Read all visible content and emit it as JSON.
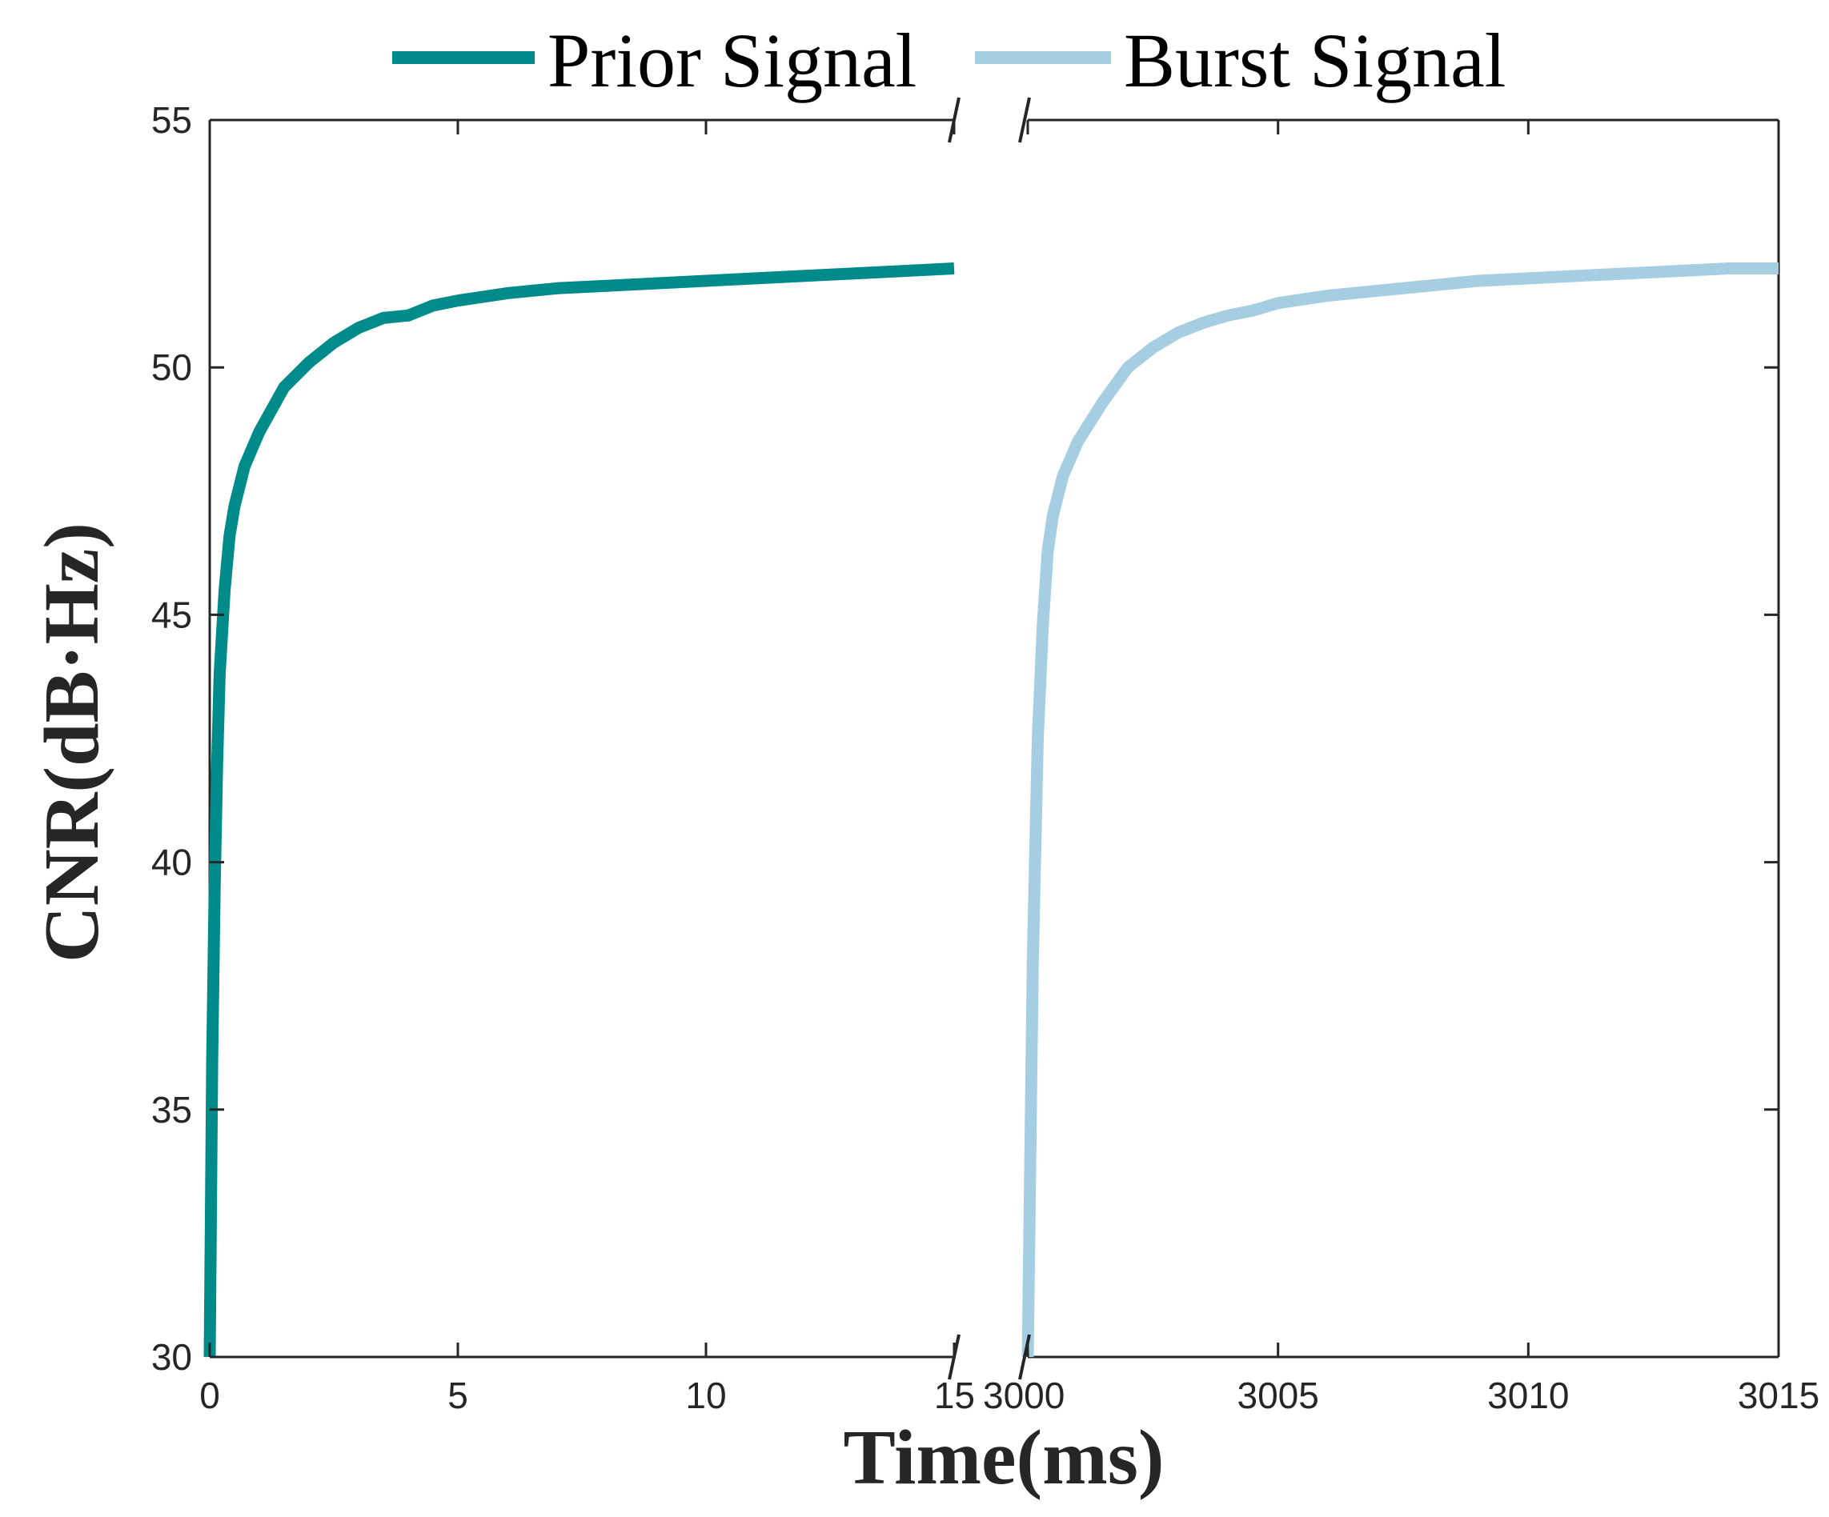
{
  "chart_data": {
    "type": "line",
    "title": "",
    "xlabel": "Time(ms)",
    "ylabel": "CNR(dB·Hz)",
    "ylim": [
      30,
      55
    ],
    "y_ticks": [
      30,
      35,
      40,
      45,
      50,
      55
    ],
    "x_axis_break": true,
    "grid": false,
    "legend": {
      "placement": "top-outside",
      "orientation": "horizontal"
    },
    "segments": [
      {
        "xlim": [
          0,
          15
        ],
        "x_ticks": [
          0,
          5,
          10,
          15
        ]
      },
      {
        "xlim": [
          3000,
          3015
        ],
        "x_ticks": [
          3000,
          3005,
          3010,
          3015
        ]
      }
    ],
    "series": [
      {
        "name": "Prior Signal",
        "color": "#008b8b",
        "x": [
          0,
          0.05,
          0.1,
          0.15,
          0.2,
          0.3,
          0.4,
          0.5,
          0.7,
          1,
          1.5,
          2,
          2.5,
          3,
          3.5,
          4,
          4.5,
          5,
          6,
          7,
          8,
          9,
          10,
          11,
          12,
          13,
          14,
          15
        ],
        "y": [
          30,
          36,
          39.5,
          42,
          43.8,
          45.5,
          46.6,
          47.2,
          48,
          48.7,
          49.6,
          50.1,
          50.5,
          50.8,
          51,
          51.05,
          51.25,
          51.35,
          51.5,
          51.6,
          51.65,
          51.7,
          51.75,
          51.8,
          51.85,
          51.9,
          51.95,
          52
        ]
      },
      {
        "name": "Burst Signal",
        "color": "#a6cee3",
        "x": [
          3000,
          3000.1,
          3000.2,
          3000.3,
          3000.4,
          3000.5,
          3000.7,
          3001,
          3001.5,
          3002,
          3002.5,
          3003,
          3003.5,
          3004,
          3004.5,
          3005,
          3006,
          3007,
          3008,
          3009,
          3010,
          3011,
          3012,
          3013,
          3014,
          3015
        ],
        "y": [
          30,
          38,
          42.5,
          44.8,
          46.3,
          47,
          47.8,
          48.5,
          49.3,
          50,
          50.4,
          50.7,
          50.9,
          51.05,
          51.15,
          51.3,
          51.45,
          51.55,
          51.65,
          51.75,
          51.8,
          51.85,
          51.9,
          51.95,
          52,
          52
        ]
      }
    ]
  }
}
